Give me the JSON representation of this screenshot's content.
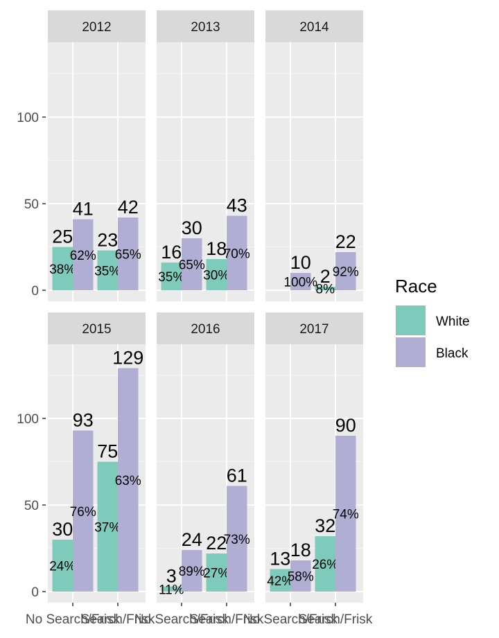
{
  "chart_data": {
    "type": "bar",
    "facet_by": "year",
    "categories": [
      "No Search/Frisk",
      "Search/Frisk"
    ],
    "ylim": [
      0,
      145
    ],
    "y_ticks": [
      0,
      50,
      100
    ],
    "grid": true,
    "legend": {
      "title": "Race",
      "placement": "right",
      "entries": [
        {
          "name": "White",
          "color": "#7fcbbb"
        },
        {
          "name": "Black",
          "color": "#b1aed4"
        }
      ]
    },
    "panels": [
      {
        "title": "2012",
        "series": [
          {
            "name": "White",
            "values": [
              25,
              23
            ],
            "labels": [
              "38%",
              "35%"
            ]
          },
          {
            "name": "Black",
            "values": [
              41,
              42
            ],
            "labels": [
              "62%",
              "65%"
            ]
          }
        ]
      },
      {
        "title": "2013",
        "series": [
          {
            "name": "White",
            "values": [
              16,
              18
            ],
            "labels": [
              "35%",
              "30%"
            ]
          },
          {
            "name": "Black",
            "values": [
              30,
              43
            ],
            "labels": [
              "65%",
              "70%"
            ]
          }
        ]
      },
      {
        "title": "2014",
        "series": [
          {
            "name": "White",
            "values": [
              null,
              2
            ],
            "labels": [
              null,
              "8%"
            ]
          },
          {
            "name": "Black",
            "values": [
              10,
              22
            ],
            "labels": [
              "100%",
              "92%"
            ]
          }
        ]
      },
      {
        "title": "2015",
        "series": [
          {
            "name": "White",
            "values": [
              30,
              75
            ],
            "labels": [
              "24%",
              "37%"
            ]
          },
          {
            "name": "Black",
            "values": [
              93,
              129
            ],
            "labels": [
              "76%",
              "63%"
            ]
          }
        ]
      },
      {
        "title": "2016",
        "series": [
          {
            "name": "White",
            "values": [
              3,
              22
            ],
            "labels": [
              "11%",
              "27%"
            ]
          },
          {
            "name": "Black",
            "values": [
              24,
              61
            ],
            "labels": [
              "89%",
              "73%"
            ]
          }
        ]
      },
      {
        "title": "2017",
        "series": [
          {
            "name": "White",
            "values": [
              13,
              32
            ],
            "labels": [
              "42%",
              "26%"
            ]
          },
          {
            "name": "Black",
            "values": [
              18,
              90
            ],
            "labels": [
              "58%",
              "74%"
            ]
          }
        ]
      }
    ]
  }
}
